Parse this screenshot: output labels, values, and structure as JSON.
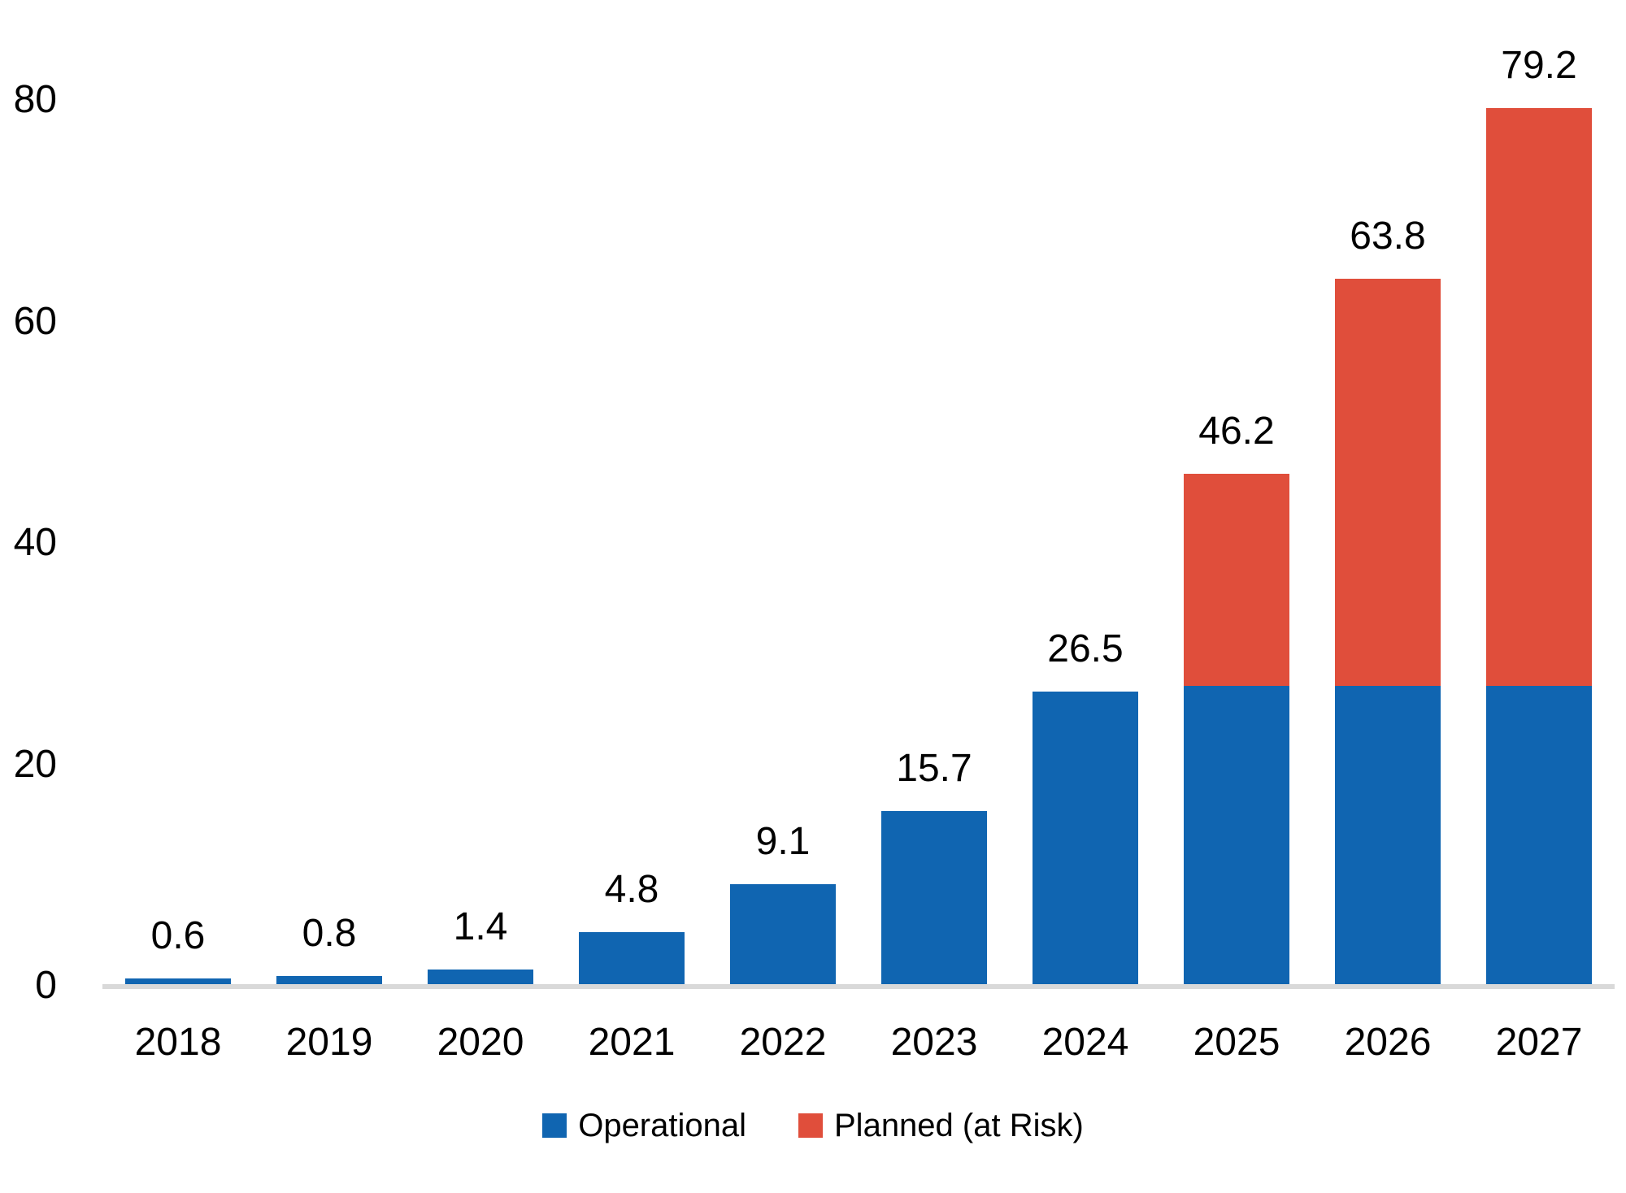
{
  "chart_data": {
    "type": "bar",
    "stacked": true,
    "categories": [
      "2018",
      "2019",
      "2020",
      "2021",
      "2022",
      "2023",
      "2024",
      "2025",
      "2026",
      "2027"
    ],
    "series": [
      {
        "name": "Operational",
        "color": "#1065B1",
        "values": [
          0.6,
          0.8,
          1.4,
          4.8,
          9.1,
          15.7,
          26.5,
          27.0,
          27.0,
          27.0
        ]
      },
      {
        "name": "Planned (at Risk)",
        "color": "#E04E3B",
        "values": [
          0,
          0,
          0,
          0,
          0,
          0,
          0,
          19.2,
          36.8,
          52.2
        ]
      }
    ],
    "totals": [
      0.6,
      0.8,
      1.4,
      4.8,
      9.1,
      15.7,
      26.5,
      46.2,
      63.8,
      79.2
    ],
    "total_labels": [
      "0.6",
      "0.8",
      "1.4",
      "4.8",
      "9.1",
      "15.7",
      "26.5",
      "46.2",
      "63.8",
      "79.2"
    ],
    "title": "",
    "xlabel": "",
    "ylabel": "",
    "ylim": [
      0,
      80
    ],
    "yticks": [
      0,
      20,
      40,
      60,
      80
    ],
    "ytick_labels": [
      "0",
      "20",
      "40",
      "60",
      "80"
    ],
    "grid": false,
    "legend_position": "bottom",
    "axis_line_color": "#D9D9D9",
    "text_color": "#000000",
    "background_color": "#FFFFFF"
  }
}
